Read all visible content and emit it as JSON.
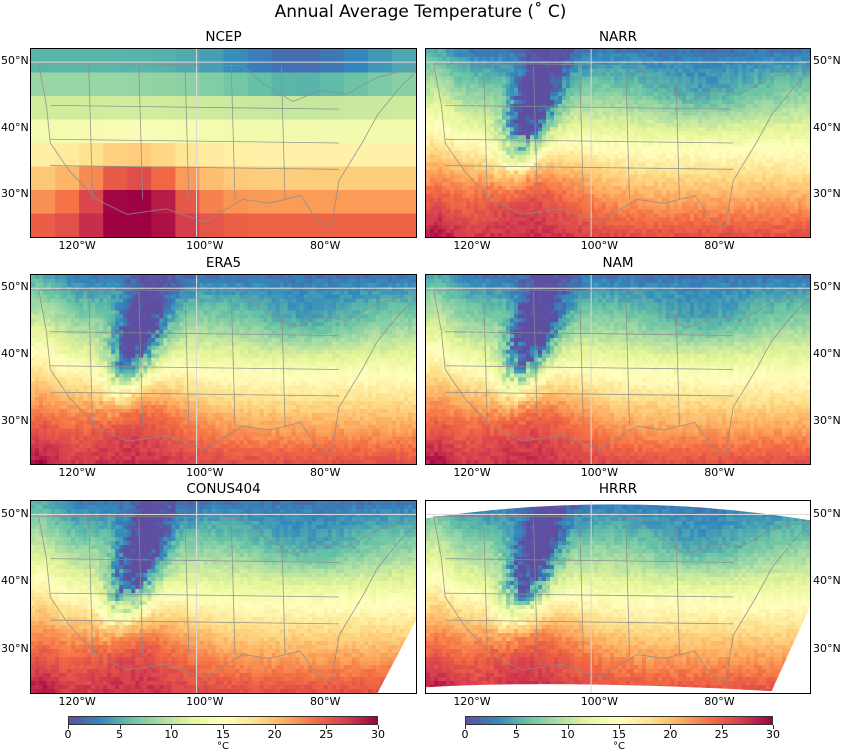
{
  "title": "Annual Average Temperature ($^\\circ$C)",
  "title_display": "Annual Average Temperature (˚ C)",
  "chart_data": [
    {
      "type": "heatmap",
      "title": "NCEP",
      "x_ticks": [
        "120°W",
        "100°W",
        "80°W"
      ],
      "y_ticks": [
        "50°N",
        "40°N",
        "30°N"
      ],
      "y_tick_side": "left",
      "vmin": 0,
      "vmax": 30,
      "colormap": "Spectral_r",
      "resolution": "coarse"
    },
    {
      "type": "heatmap",
      "title": "NARR",
      "x_ticks": [
        "120°W",
        "100°W",
        "80°W"
      ],
      "y_ticks": [
        "50°N",
        "40°N",
        "30°N"
      ],
      "y_tick_side": "right",
      "vmin": 0,
      "vmax": 30,
      "colormap": "Spectral_r",
      "resolution": "fine"
    },
    {
      "type": "heatmap",
      "title": "ERA5",
      "x_ticks": [
        "120°W",
        "100°W",
        "80°W"
      ],
      "y_ticks": [
        "50°N",
        "40°N",
        "30°N"
      ],
      "y_tick_side": "left",
      "vmin": 0,
      "vmax": 30,
      "colormap": "Spectral_r",
      "resolution": "fine"
    },
    {
      "type": "heatmap",
      "title": "NAM",
      "x_ticks": [
        "120°W",
        "100°W",
        "80°W"
      ],
      "y_ticks": [
        "50°N",
        "40°N",
        "30°N"
      ],
      "y_tick_side": "right",
      "vmin": 0,
      "vmax": 30,
      "colormap": "Spectral_r",
      "resolution": "fine"
    },
    {
      "type": "heatmap",
      "title": "CONUS404",
      "x_ticks": [
        "120°W",
        "100°W",
        "80°W"
      ],
      "y_ticks": [
        "50°N",
        "40°N",
        "30°N"
      ],
      "y_tick_side": "left",
      "vmin": 0,
      "vmax": 30,
      "colormap": "Spectral_r",
      "resolution": "fine"
    },
    {
      "type": "heatmap",
      "title": "HRRR",
      "x_ticks": [
        "120°W",
        "100°W",
        "80°W"
      ],
      "y_ticks": [
        "50°N",
        "40°N",
        "30°N"
      ],
      "y_tick_side": "right",
      "vmin": 0,
      "vmax": 30,
      "colormap": "Spectral_r",
      "resolution": "fine",
      "domain_curved": true
    }
  ],
  "colorbars": [
    {
      "ticks": [
        "0",
        "5",
        "10",
        "15",
        "20",
        "25",
        "30"
      ],
      "label": "°C"
    },
    {
      "ticks": [
        "0",
        "5",
        "10",
        "15",
        "20",
        "25",
        "30"
      ],
      "label": "°C"
    }
  ],
  "colors": {
    "cold": "#5e4fa2",
    "cool": "#3288bd",
    "mild": "#abdda4",
    "neutral": "#ffffbf",
    "warm": "#fdae61",
    "hot": "#d53e4f",
    "hottest": "#9e0142",
    "borders": "#8c8c8c",
    "gridlines": "#d9d9d9"
  }
}
